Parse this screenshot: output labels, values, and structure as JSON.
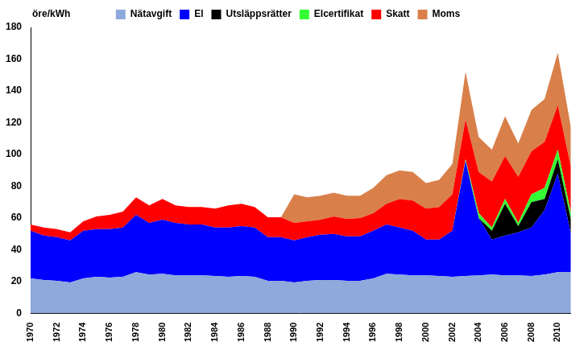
{
  "chart_data": {
    "type": "area",
    "y_label": "öre/kWh",
    "categories": [
      1970,
      null,
      1972,
      null,
      1974,
      null,
      1976,
      null,
      1978,
      null,
      1980,
      null,
      1982,
      null,
      1984,
      null,
      1986,
      null,
      1988,
      null,
      1990,
      null,
      1992,
      null,
      1994,
      null,
      1996,
      null,
      1998,
      null,
      2000,
      null,
      2002,
      null,
      2004,
      null,
      2006,
      null,
      2008,
      null,
      2010,
      null
    ],
    "series": [
      {
        "name": "Nätavgift",
        "color": "#8EA9DB",
        "values": [
          22,
          21,
          20.5,
          19.5,
          22,
          23,
          22.5,
          23,
          26,
          24.5,
          25,
          24,
          24,
          24,
          23.5,
          23,
          23.5,
          23,
          20.5,
          20.5,
          19.5,
          20.5,
          21,
          21,
          20.5,
          20.5,
          22,
          25,
          24.5,
          24,
          24,
          23.5,
          23,
          23.5,
          24,
          24.5,
          24,
          24,
          23.5,
          24.5,
          26,
          26
        ]
      },
      {
        "name": "El",
        "color": "#0000FF",
        "values": [
          30,
          28,
          27.5,
          26.5,
          30,
          30,
          30.5,
          31,
          36,
          32.5,
          34,
          33,
          32,
          32,
          30.5,
          31,
          31.5,
          31,
          27.5,
          27.5,
          26.5,
          27.5,
          28.5,
          29,
          28,
          28,
          30,
          31,
          29.5,
          28,
          22.5,
          23,
          29,
          72.5,
          36,
          22,
          25,
          27,
          30.5,
          40.5,
          62,
          24
        ]
      },
      {
        "name": "Utsläppsrätter",
        "color": "#000000",
        "values": [
          0,
          0,
          0,
          0,
          0,
          0,
          0,
          0,
          0,
          0,
          0,
          0,
          0,
          0,
          0,
          0,
          0,
          0,
          0,
          0,
          0,
          0,
          0,
          0,
          0,
          0,
          0,
          0,
          0,
          0,
          0,
          0,
          0,
          0,
          0,
          5.5,
          20,
          4,
          16,
          7,
          9,
          9
        ]
      },
      {
        "name": "Elcertifikat",
        "color": "#33FF33",
        "values": [
          0,
          0,
          0,
          0,
          0,
          0,
          0,
          0,
          0,
          0,
          0,
          0,
          0,
          0,
          0,
          0,
          0,
          0,
          0,
          0,
          0,
          0,
          0,
          0,
          0,
          0,
          0,
          0,
          0,
          0,
          0,
          0,
          0,
          1,
          3,
          2,
          3,
          2,
          5,
          7,
          6,
          4
        ]
      },
      {
        "name": "Skatt",
        "color": "#FF0000",
        "values": [
          4,
          5,
          5,
          5,
          6,
          8,
          9,
          10,
          11,
          11,
          13,
          11,
          11,
          11,
          12,
          14,
          14,
          13,
          12.5,
          12.5,
          11,
          10,
          9.5,
          11,
          11,
          11.5,
          11,
          13,
          18,
          19,
          19.5,
          20.5,
          23,
          25,
          26,
          29,
          27,
          29,
          27,
          29,
          28,
          29
        ]
      },
      {
        "name": "Moms",
        "color": "#D9804A",
        "values": [
          0,
          0,
          0,
          0,
          0,
          0,
          0,
          0,
          0,
          0,
          0,
          0,
          0,
          0,
          0,
          0,
          0,
          0,
          0,
          0,
          18,
          15,
          15,
          15,
          14.5,
          14,
          16,
          18,
          18,
          18,
          16,
          17,
          19,
          30,
          22,
          20,
          25,
          21,
          26,
          27,
          33,
          25
        ]
      }
    ],
    "ylim": [
      0,
      180
    ],
    "yticks": [
      0,
      20,
      40,
      60,
      80,
      100,
      120,
      140,
      160,
      180
    ],
    "stacked": true,
    "grid": false,
    "legend": "top"
  }
}
